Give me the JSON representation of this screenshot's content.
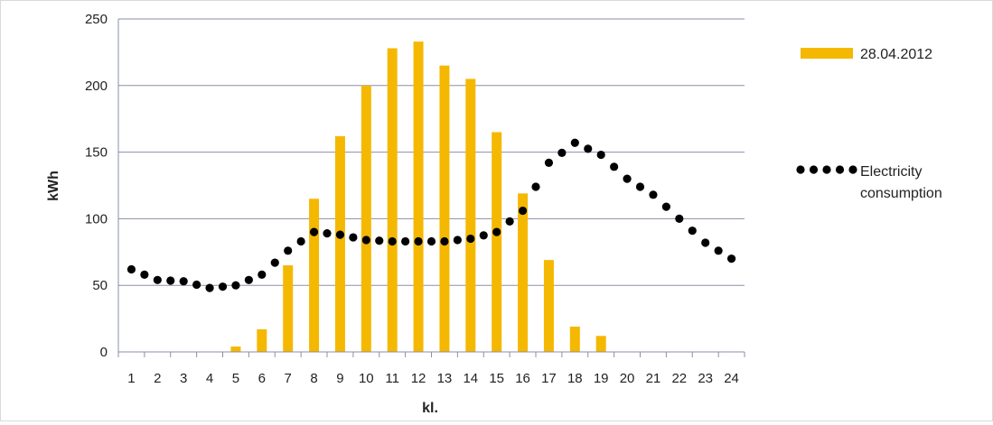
{
  "chart_data": {
    "type": "bar",
    "title": "",
    "xlabel": "kl.",
    "ylabel": "kWh",
    "ylim": [
      0,
      250
    ],
    "yticks": [
      0,
      50,
      100,
      150,
      200,
      250
    ],
    "categories": [
      "1",
      "2",
      "3",
      "4",
      "5",
      "6",
      "7",
      "8",
      "9",
      "10",
      "11",
      "12",
      "13",
      "14",
      "15",
      "16",
      "17",
      "18",
      "19",
      "20",
      "21",
      "22",
      "23",
      "24"
    ],
    "grid": "horizontal",
    "legend_position": "right",
    "series": [
      {
        "name": "28.04.2012",
        "kind": "bar",
        "color": "#f5b800",
        "values": [
          0,
          0,
          0,
          0,
          4,
          17,
          65,
          115,
          162,
          200,
          228,
          233,
          215,
          205,
          165,
          119,
          69,
          19,
          12,
          0,
          0,
          0,
          0,
          0
        ]
      },
      {
        "name": "Electricity consumption",
        "kind": "dotted-line",
        "color": "#000000",
        "values": [
          62,
          54,
          53,
          48,
          50,
          58,
          76,
          90,
          88,
          84,
          83,
          83,
          83,
          85,
          90,
          106,
          142,
          157,
          148,
          130,
          118,
          100,
          82,
          70
        ]
      }
    ]
  }
}
